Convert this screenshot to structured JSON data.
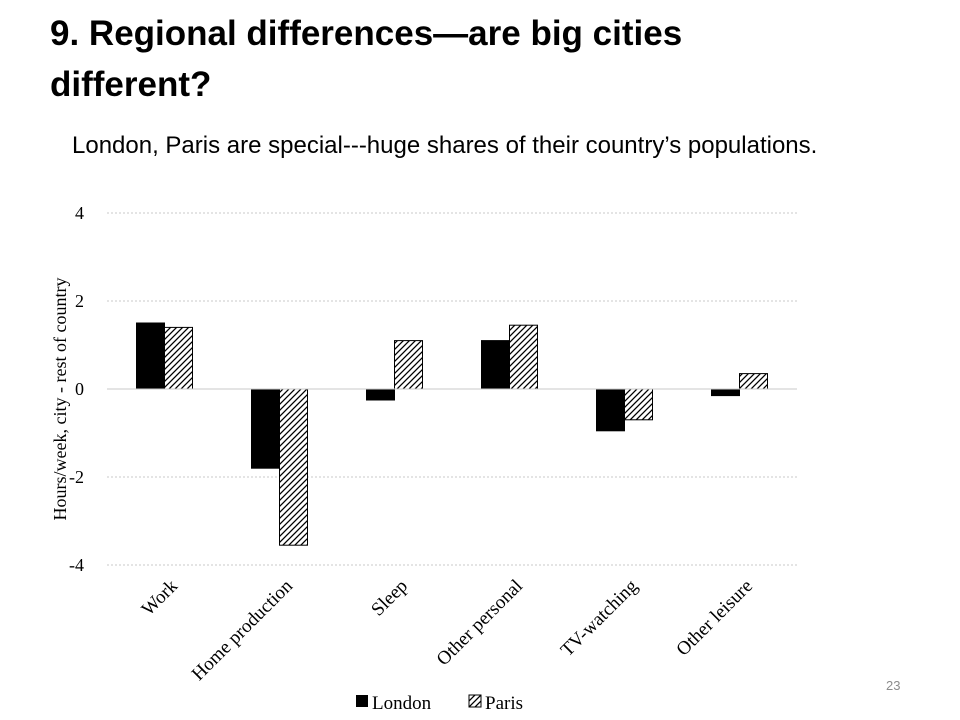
{
  "slide": {
    "title": "9. Regional differences—are big cities different?",
    "subtitle": "London, Paris are special---huge shares of their country’s populations.",
    "page_number": "23"
  },
  "chart_data": {
    "type": "bar",
    "categories": [
      "Work",
      "Home production",
      "Sleep",
      "Other personal",
      "TV-watching",
      "Other leisure"
    ],
    "series": [
      {
        "name": "London",
        "values": [
          1.5,
          -1.8,
          -0.25,
          1.1,
          -0.95,
          -0.15
        ],
        "color": "#000000",
        "pattern": "solid"
      },
      {
        "name": "Paris",
        "values": [
          1.4,
          -3.55,
          1.1,
          1.45,
          -0.7,
          0.35
        ],
        "color": "#000000",
        "pattern": "diagonal-hatch"
      }
    ],
    "ylabel": "Hours/week,  city -  rest of country",
    "xlabel": "",
    "ylim": [
      -4,
      4
    ],
    "yticks": [
      "4",
      "2",
      "0",
      "-2",
      "-4"
    ],
    "grid": true,
    "legend": "bottom"
  }
}
